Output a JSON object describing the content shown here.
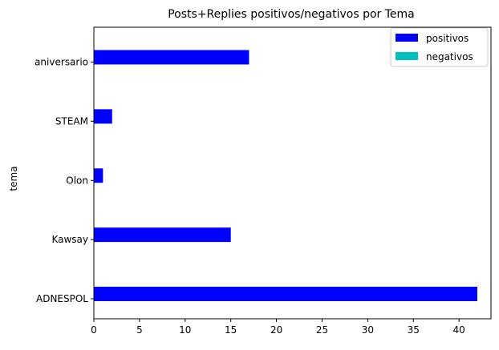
{
  "chart_data": {
    "type": "bar",
    "orientation": "horizontal",
    "title": "Posts+Replies positivos/negativos por Tema",
    "xlabel": "",
    "ylabel": "tema",
    "categories": [
      "ADNESPOL",
      "Kawsay",
      "Olon",
      "STEAM",
      "aniversario"
    ],
    "series": [
      {
        "name": "positivos",
        "values": [
          42,
          15,
          1,
          2,
          17
        ],
        "color": "#0000ff"
      },
      {
        "name": "negativos",
        "values": [
          0,
          0,
          0,
          0,
          0
        ],
        "color": "#00bfbf"
      }
    ],
    "xlim": [
      0,
      43.5
    ],
    "xticks": [
      0,
      5,
      10,
      15,
      20,
      25,
      30,
      35,
      40
    ],
    "grid": false,
    "legend": "top-right"
  }
}
